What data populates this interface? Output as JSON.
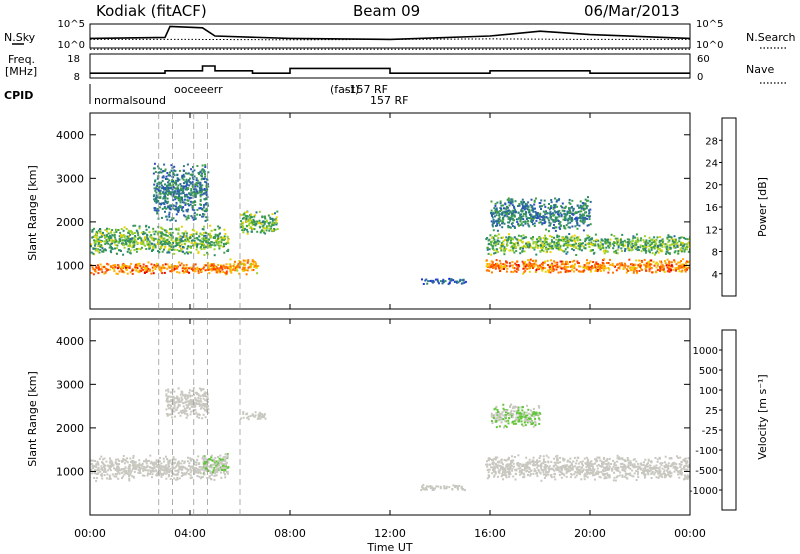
{
  "header": {
    "site": "Kodiak (fitACF)",
    "beam": "Beam 09",
    "date": "06/Mar/2013"
  },
  "panel_labels": {
    "nsky": "N.Sky",
    "nsearch": "N.Search",
    "freq": "Freq.",
    "freq_unit": "[MHz]",
    "nave": "Nave",
    "cpid": "CPID"
  },
  "cpid_text": {
    "normalsound": "normalsound",
    "cluster": "ooceeerr",
    "rf1": "–157 RF",
    "rf2": "157 RF",
    "fast": "(fast)"
  },
  "axes": {
    "slant_range_label": "Slant Range [km]",
    "time_label": "Time UT",
    "x_ticks": [
      "00:00",
      "04:00",
      "08:00",
      "12:00",
      "16:00",
      "20:00",
      "00:00"
    ],
    "y_ticks": [
      "1000",
      "2000",
      "3000",
      "4000"
    ],
    "nsky_ticks": [
      "10^5",
      "10^0"
    ],
    "nsearch_ticks": [
      "10^5",
      "10^0"
    ],
    "freq_ticks": [
      "18",
      "8"
    ],
    "nave_ticks": [
      "60",
      "0"
    ]
  },
  "power_colorbar": {
    "label": "Power [dB]",
    "ticks": [
      "28",
      "24",
      "20",
      "16",
      "12",
      "8",
      "4"
    ],
    "colors": [
      "#e00000",
      "#ff3a00",
      "#ff7a00",
      "#ffb000",
      "#e8d400",
      "#9ad22a",
      "#3fa048",
      "#2f8c6a",
      "#2c6e9a",
      "#2b4fbf",
      "#2233e0",
      "#1a1aff"
    ]
  },
  "velocity_colorbar": {
    "label": "Velocity [m s⁻¹]",
    "ticks": [
      "1000",
      "500",
      "100",
      "25",
      "-25",
      "-100",
      "-500",
      "-1000"
    ],
    "colors": [
      "#1f3fbf",
      "#2c5ba8",
      "#2e7a6a",
      "#3b9a3a",
      "#63c63a",
      "#c8c8c0",
      "#c8c8c0",
      "#ffa020",
      "#ff7a10",
      "#ff4a10",
      "#e01010"
    ]
  },
  "chart_data": [
    {
      "type": "heatmap",
      "title": "Power",
      "x_range_ut_hours": [
        0,
        24
      ],
      "ylim": [
        0,
        4500
      ],
      "ylabel": "Slant Range [km]",
      "xlabel": "Time UT",
      "colorbar_label": "Power [dB]",
      "colorbar_range": [
        0,
        30
      ],
      "echo_regions": [
        {
          "ut_start": 0.0,
          "ut_end": 5.5,
          "range_center_km": 950,
          "range_width_km": 300,
          "power_db": 24
        },
        {
          "ut_start": 0.0,
          "ut_end": 5.5,
          "range_center_km": 1600,
          "range_width_km": 700,
          "power_db": 14
        },
        {
          "ut_start": 2.5,
          "ut_end": 4.7,
          "range_center_km": 2700,
          "range_width_km": 1400,
          "power_db": 10
        },
        {
          "ut_start": 5.5,
          "ut_end": 6.7,
          "range_center_km": 1000,
          "range_width_km": 400,
          "power_db": 22
        },
        {
          "ut_start": 6.0,
          "ut_end": 7.5,
          "range_center_km": 2000,
          "range_width_km": 600,
          "power_db": 14
        },
        {
          "ut_start": 13.2,
          "ut_end": 15.0,
          "range_center_km": 650,
          "range_width_km": 150,
          "power_db": 6
        },
        {
          "ut_start": 15.8,
          "ut_end": 24.0,
          "range_center_km": 1000,
          "range_width_km": 350,
          "power_db": 24
        },
        {
          "ut_start": 15.8,
          "ut_end": 24.0,
          "range_center_km": 1500,
          "range_width_km": 500,
          "power_db": 14
        },
        {
          "ut_start": 16.0,
          "ut_end": 20.0,
          "range_center_km": 2200,
          "range_width_km": 800,
          "power_db": 10
        }
      ]
    },
    {
      "type": "heatmap",
      "title": "Velocity",
      "x_range_ut_hours": [
        0,
        24
      ],
      "ylim": [
        0,
        4500
      ],
      "ylabel": "Slant Range [km]",
      "xlabel": "Time UT",
      "colorbar_label": "Velocity [m s⁻¹]",
      "colorbar_range": [
        -1000,
        1000
      ],
      "echo_regions": [
        {
          "ut_start": 0.0,
          "ut_end": 5.5,
          "range_center_km": 1100,
          "range_width_km": 600,
          "velocity": 0
        },
        {
          "ut_start": 3.0,
          "ut_end": 4.7,
          "range_center_km": 2600,
          "range_width_km": 800,
          "velocity": -150
        },
        {
          "ut_start": 4.5,
          "ut_end": 5.5,
          "range_center_km": 1200,
          "range_width_km": 500,
          "velocity": 100
        },
        {
          "ut_start": 6.0,
          "ut_end": 7.0,
          "range_center_km": 2300,
          "range_width_km": 200,
          "velocity": -150
        },
        {
          "ut_start": 13.2,
          "ut_end": 15.0,
          "range_center_km": 650,
          "range_width_km": 150,
          "velocity": -150
        },
        {
          "ut_start": 15.8,
          "ut_end": 24.0,
          "range_center_km": 1100,
          "range_width_km": 600,
          "velocity": 0
        },
        {
          "ut_start": 16.0,
          "ut_end": 18.0,
          "range_center_km": 2300,
          "range_width_km": 600,
          "velocity": 100
        }
      ]
    },
    {
      "type": "line",
      "title": "N.Sky / N.Search",
      "x_range_ut_hours": [
        0,
        24
      ],
      "series": [
        {
          "name": "N.Sky",
          "x": [
            0,
            3,
            3.2,
            4.5,
            5,
            8,
            12,
            16,
            18,
            20,
            24
          ],
          "y": [
            2.0,
            2.2,
            4.5,
            4.2,
            2.5,
            2.0,
            1.8,
            2.5,
            3.5,
            2.8,
            2.0
          ]
        },
        {
          "name": "N.Search",
          "x": [
            0,
            4,
            8,
            12,
            16,
            20,
            24
          ],
          "y": [
            1.8,
            1.8,
            1.7,
            1.8,
            1.9,
            1.8,
            1.8
          ]
        }
      ]
    },
    {
      "type": "line",
      "title": "Freq. / Nave",
      "x_range_ut_hours": [
        0,
        24
      ],
      "series": [
        {
          "name": "Freq.",
          "x": [
            0,
            3.0,
            3.0,
            4.5,
            4.5,
            5.0,
            5.0,
            6.5,
            6.5,
            8.0,
            8.0,
            12,
            12,
            16,
            16,
            20,
            20,
            24
          ],
          "y": [
            10,
            10,
            11,
            11,
            13,
            13,
            11,
            11,
            10,
            10,
            12,
            12,
            10,
            10,
            11,
            11,
            10,
            10
          ]
        },
        {
          "name": "Nave",
          "x": [
            0,
            24
          ],
          "y": [
            20,
            20
          ]
        }
      ]
    }
  ]
}
